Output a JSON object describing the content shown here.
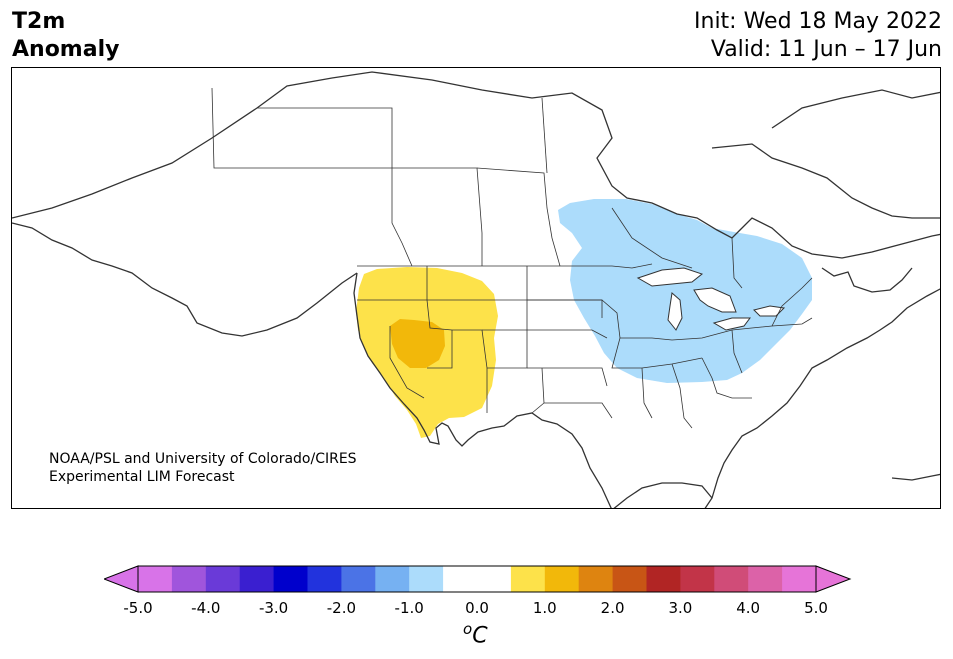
{
  "header": {
    "variable": "T2m",
    "quantity": "Anomaly",
    "init": "Init: Wed 18 May 2022",
    "valid": "Valid: 11 Jun – 17 Jun"
  },
  "credit": {
    "line1": "NOAA/PSL and University of Colorado/CIRES",
    "line2": "Experimental LIM Forecast"
  },
  "colorbar": {
    "unit_base": "C",
    "unit_sup": "o",
    "ticks": [
      "-5.0",
      "-4.0",
      "-3.0",
      "-2.0",
      "-1.0",
      "0.0",
      "1.0",
      "2.0",
      "3.0",
      "4.0",
      "5.0"
    ],
    "bins": [
      {
        "from": -5.0,
        "to": -4.5,
        "color": "#d873e8"
      },
      {
        "from": -4.5,
        "to": -4.0,
        "color": "#a055dc"
      },
      {
        "from": -4.0,
        "to": -3.5,
        "color": "#6a3ad8"
      },
      {
        "from": -3.5,
        "to": -3.0,
        "color": "#3a1fd0"
      },
      {
        "from": -3.0,
        "to": -2.5,
        "color": "#0000cc"
      },
      {
        "from": -2.5,
        "to": -2.0,
        "color": "#2233dd"
      },
      {
        "from": -2.0,
        "to": -1.5,
        "color": "#4b73e6"
      },
      {
        "from": -1.5,
        "to": -1.0,
        "color": "#76b1f2"
      },
      {
        "from": -1.0,
        "to": -0.5,
        "color": "#acdcfb"
      },
      {
        "from": -0.5,
        "to": 0.0,
        "color": "#ffffff"
      },
      {
        "from": 0.0,
        "to": 0.5,
        "color": "#ffffff"
      },
      {
        "from": 0.5,
        "to": 1.0,
        "color": "#fde24a"
      },
      {
        "from": 1.0,
        "to": 1.5,
        "color": "#f2b80a"
      },
      {
        "from": 1.5,
        "to": 2.0,
        "color": "#de8410"
      },
      {
        "from": 2.0,
        "to": 2.5,
        "color": "#c85515"
      },
      {
        "from": 2.5,
        "to": 3.0,
        "color": "#b12524"
      },
      {
        "from": 3.0,
        "to": 3.5,
        "color": "#c23448"
      },
      {
        "from": 3.5,
        "to": 4.0,
        "color": "#d04c78"
      },
      {
        "from": 4.0,
        "to": 4.5,
        "color": "#dc62a8"
      },
      {
        "from": 4.5,
        "to": 5.0,
        "color": "#e674d8"
      }
    ],
    "under_color": "#d873e8",
    "over_color": "#e674d8"
  },
  "map": {
    "anomaly_regions": [
      {
        "name": "west-warm",
        "level": "0.5 to 1.0",
        "color": "#fde24a"
      },
      {
        "name": "great-basin-warm",
        "level": "1.0 to 1.5",
        "color": "#f2b80a"
      },
      {
        "name": "east-cool",
        "level": "-1.0 to -0.5",
        "color": "#acdcfb"
      }
    ]
  }
}
